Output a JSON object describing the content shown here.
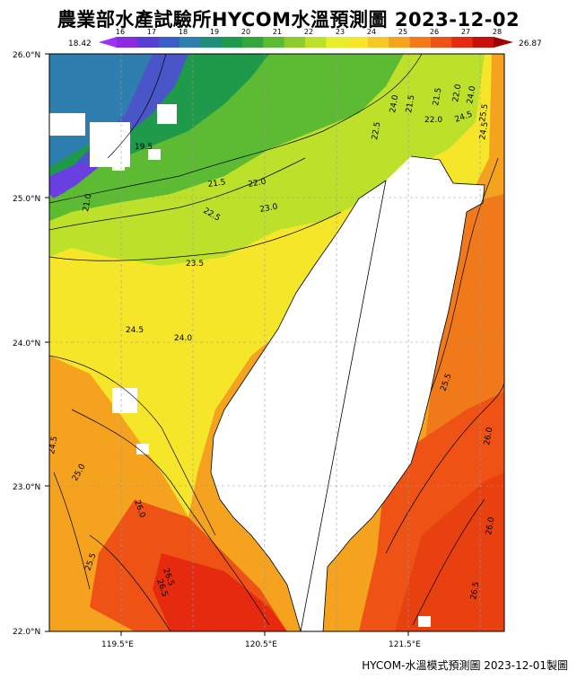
{
  "title": "農業部水產試驗所HYCOM水溫預測圖 2023-12-02",
  "footer": "HYCOM-水溫模式預測圖 2023-12-01製圖",
  "colorbar": {
    "min_label": "18.42",
    "max_label": "26.87",
    "ticks": [
      "16",
      "17",
      "18",
      "19",
      "20",
      "21",
      "22",
      "23",
      "24",
      "25",
      "26",
      "27",
      "28"
    ],
    "colors": [
      "#8a2be2",
      "#5a3fd6",
      "#3b5fc8",
      "#2e7fb0",
      "#1f8f7a",
      "#1e9a4a",
      "#33a83a",
      "#5cbb32",
      "#8ccc2c",
      "#bde02a",
      "#e6ef2a",
      "#f6e62a",
      "#f5c823",
      "#f5a21e",
      "#f27a18",
      "#ee5214",
      "#e52a10",
      "#c8100c"
    ]
  },
  "axes": {
    "lat_labels": [
      "26.0°N",
      "25.0°N",
      "24.0°N",
      "23.0°N",
      "22.0°N"
    ],
    "lon_labels": [
      "119.5°E",
      "120.5°E",
      "121.5°E"
    ]
  },
  "contour_labels": [
    "21.5",
    "22.0",
    "21.5",
    "22.0",
    "22.5",
    "23.0",
    "23.5",
    "24.0",
    "24.5",
    "24.0",
    "24.5",
    "25.5",
    "26.0",
    "24.5",
    "25.0",
    "25.5",
    "26.0",
    "26.5",
    "26.5",
    "25.5",
    "26.0",
    "25.5",
    "21.0",
    "19.5",
    "22.5",
    "22.0",
    "21.5",
    "24.0",
    "24.5",
    "26.0",
    "26.5"
  ]
}
